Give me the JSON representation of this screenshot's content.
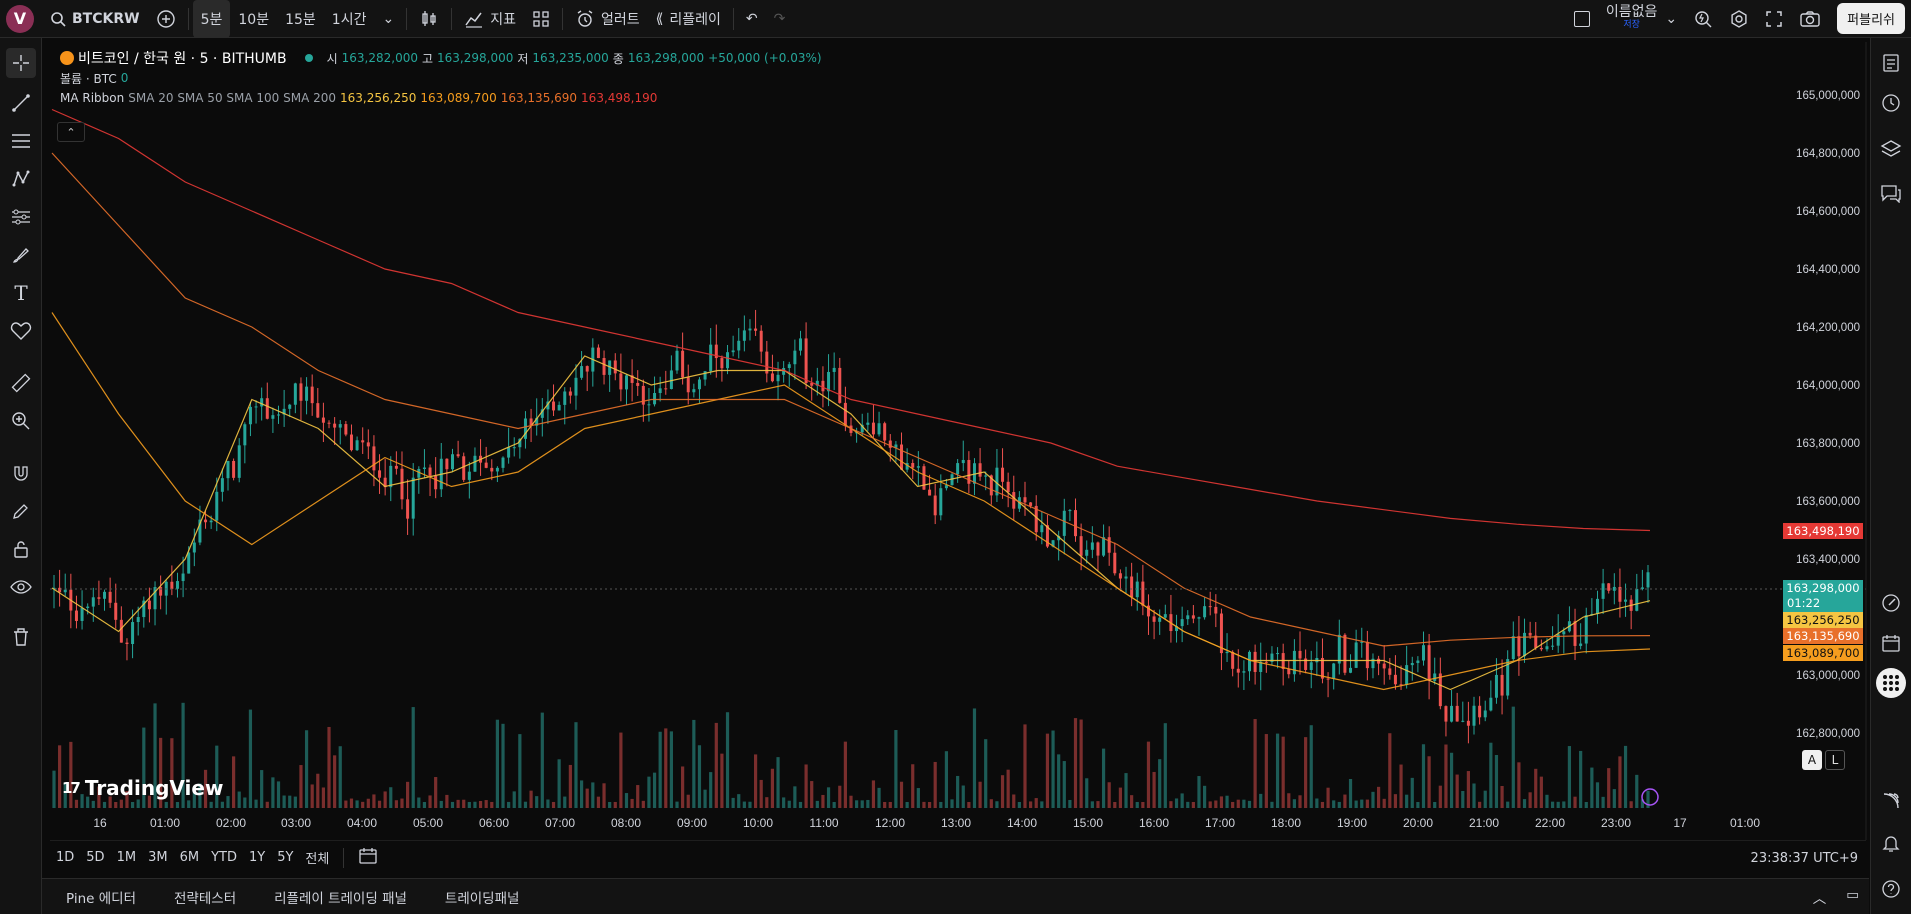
{
  "user": {
    "avatar_letter": "V"
  },
  "symbol": "BTCKRW",
  "timeframes": [
    "5분",
    "10분",
    "15분",
    "1시간"
  ],
  "toolbar": {
    "indicators_label": "지표",
    "alert_label": "얼러트",
    "replay_label": "리플레이",
    "layout_name": "이름없음",
    "layout_saved": "저장",
    "publish_label": "퍼블리쉬"
  },
  "legend": {
    "title": "비트코인 / 한국 원 · 5 · BITHUMB",
    "open_label": "시",
    "open": "163,282,000",
    "high_label": "고",
    "high": "163,298,000",
    "low_label": "저",
    "low": "163,235,000",
    "close_label": "종",
    "close": "163,298,000",
    "change": "+50,000 (+0.03%)",
    "volume_label": "볼륨 · BTC",
    "volume_value": "0",
    "ma_label": "MA Ribbon",
    "ma_params": "SMA 20 SMA 50 SMA 100 SMA 200",
    "ma_values": [
      "163,256,250",
      "163,089,700",
      "163,135,690",
      "163,498,190"
    ]
  },
  "price_axis": [
    "165,000,000",
    "164,800,000",
    "164,600,000",
    "164,400,000",
    "164,200,000",
    "164,000,000",
    "163,800,000",
    "163,600,000",
    "163,400,000",
    "163,200,000",
    "163,000,000",
    "162,800,000"
  ],
  "price_tags": {
    "last": "163,298,000",
    "countdown": "01:22",
    "sma20": "163,256,250",
    "sma100": "163,135,690",
    "sma50": "163,089,700",
    "sma200": "163,498,190"
  },
  "time_axis": [
    "16",
    "01:00",
    "02:00",
    "03:00",
    "04:00",
    "05:00",
    "06:00",
    "07:00",
    "08:00",
    "09:00",
    "10:00",
    "11:00",
    "12:00",
    "13:00",
    "14:00",
    "15:00",
    "16:00",
    "17:00",
    "18:00",
    "19:00",
    "20:00",
    "21:00",
    "22:00",
    "23:00",
    "17",
    "01:00"
  ],
  "ranges": [
    "1D",
    "5D",
    "1M",
    "3M",
    "6M",
    "YTD",
    "1Y",
    "5Y",
    "전체"
  ],
  "clock": "23:38:37 UTC+9",
  "bottom_panels": [
    "Pine 에디터",
    "전략테스터",
    "리플레이 트레이딩 패널",
    "트레이딩패널"
  ],
  "scale_buttons": {
    "auto": "A",
    "log": "L"
  },
  "logo_text": "TradingView",
  "colors": {
    "up": "#26a69a",
    "down": "#ef5350",
    "sma20": "#f5c542",
    "sma50": "#f59d1e",
    "sma100": "#e8702a",
    "sma200": "#e53935"
  },
  "chart_data": {
    "type": "line",
    "title": "비트코인 / 한국 원 · 5 · BITHUMB",
    "ylim": [
      162700000,
      165100000
    ],
    "x": [
      "00:00",
      "01:00",
      "02:00",
      "03:00",
      "04:00",
      "05:00",
      "06:00",
      "07:00",
      "08:00",
      "09:00",
      "10:00",
      "11:00",
      "12:00",
      "13:00",
      "14:00",
      "15:00",
      "16:00",
      "17:00",
      "18:00",
      "19:00",
      "20:00",
      "21:00",
      "22:00",
      "23:00",
      "23:35"
    ],
    "series": [
      {
        "name": "SMA 20",
        "values": [
          163300000,
          163150000,
          163400000,
          163950000,
          163850000,
          163650000,
          163700000,
          163800000,
          164100000,
          164000000,
          164050000,
          164050000,
          163900000,
          163650000,
          163700000,
          163500000,
          163300000,
          163150000,
          163050000,
          163050000,
          163050000,
          162950000,
          163050000,
          163200000,
          163256250
        ]
      },
      {
        "name": "SMA 50",
        "values": [
          164250000,
          163900000,
          163600000,
          163450000,
          163600000,
          163750000,
          163650000,
          163700000,
          163850000,
          163900000,
          163950000,
          164000000,
          163850000,
          163700000,
          163600000,
          163450000,
          163300000,
          163150000,
          163050000,
          163000000,
          162950000,
          163000000,
          163050000,
          163080000,
          163089700
        ]
      },
      {
        "name": "SMA 100",
        "values": [
          164800000,
          164550000,
          164300000,
          164200000,
          164050000,
          163950000,
          163900000,
          163850000,
          163900000,
          163950000,
          163950000,
          163950000,
          163850000,
          163750000,
          163650000,
          163550000,
          163450000,
          163300000,
          163200000,
          163150000,
          163100000,
          163120000,
          163130000,
          163135000,
          163135690
        ]
      },
      {
        "name": "SMA 200",
        "values": [
          164950000,
          164850000,
          164700000,
          164600000,
          164500000,
          164400000,
          164350000,
          164250000,
          164200000,
          164150000,
          164100000,
          164050000,
          163950000,
          163900000,
          163850000,
          163800000,
          163720000,
          163680000,
          163640000,
          163600000,
          163570000,
          163540000,
          163520000,
          163505000,
          163498190
        ]
      }
    ],
    "last_price": 163298000,
    "grid": false
  }
}
